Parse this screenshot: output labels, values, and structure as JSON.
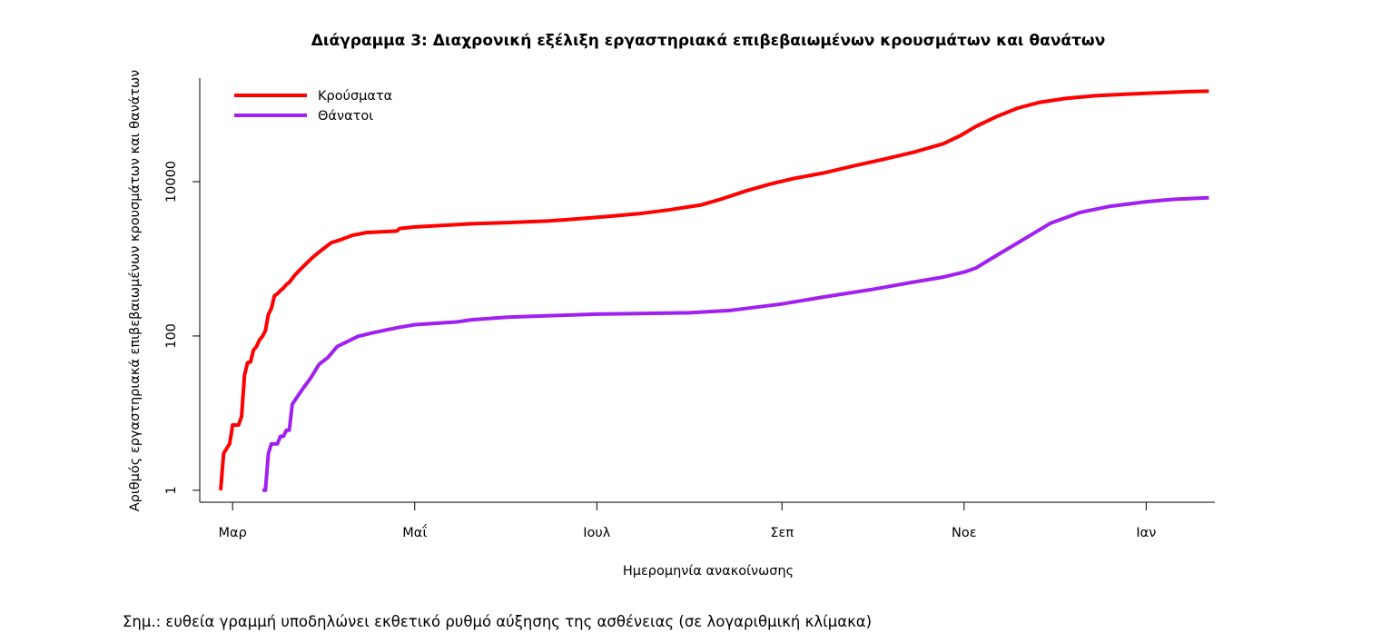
{
  "chart_data": {
    "type": "line",
    "title": "Διάγραμμα 3: Διαχρονική εξέλιξη εργαστηριακά επιβεβαιωμένων κρουσμάτων και θανάτων",
    "xlabel": "Ημερομηνία ανακοίνωσης",
    "ylabel": "Αριθμός εργαστηριακά επιβεβαιωμένων κρουσμάτων και θανάτων",
    "y_scale": "log",
    "ylim": [
      0.7,
      220000
    ],
    "xlim": [
      "2020-02-19",
      "2021-01-24"
    ],
    "y_ticks": [
      {
        "value": 1,
        "label": "1"
      },
      {
        "value": 100,
        "label": "100"
      },
      {
        "value": 10000,
        "label": "10000"
      }
    ],
    "x_ticks": [
      {
        "date": "2020-03-01",
        "label": "Μαρ"
      },
      {
        "date": "2020-05-01",
        "label": "Μαΐ"
      },
      {
        "date": "2020-07-01",
        "label": "Ιουλ"
      },
      {
        "date": "2020-09-01",
        "label": "Σεπ"
      },
      {
        "date": "2020-11-01",
        "label": "Νοε"
      },
      {
        "date": "2021-01-01",
        "label": "Ιαν"
      }
    ],
    "legend_position": "top-left",
    "grid": false,
    "series": [
      {
        "name": "Κρούσματα",
        "color": "#ff0000",
        "points": [
          [
            "2020-02-26",
            1
          ],
          [
            "2020-02-27",
            3
          ],
          [
            "2020-02-29",
            4
          ],
          [
            "2020-03-01",
            7
          ],
          [
            "2020-03-03",
            7
          ],
          [
            "2020-03-04",
            9
          ],
          [
            "2020-03-05",
            31
          ],
          [
            "2020-03-06",
            45
          ],
          [
            "2020-03-07",
            46
          ],
          [
            "2020-03-08",
            66
          ],
          [
            "2020-03-09",
            73
          ],
          [
            "2020-03-10",
            89
          ],
          [
            "2020-03-11",
            99
          ],
          [
            "2020-03-12",
            117
          ],
          [
            "2020-03-13",
            190
          ],
          [
            "2020-03-14",
            228
          ],
          [
            "2020-03-15",
            331
          ],
          [
            "2020-03-16",
            352
          ],
          [
            "2020-03-17",
            387
          ],
          [
            "2020-03-18",
            418
          ],
          [
            "2020-03-19",
            464
          ],
          [
            "2020-03-20",
            495
          ],
          [
            "2020-03-22",
            624
          ],
          [
            "2020-03-25",
            821
          ],
          [
            "2020-03-28",
            1061
          ],
          [
            "2020-03-31",
            1314
          ],
          [
            "2020-04-03",
            1613
          ],
          [
            "2020-04-06",
            1755
          ],
          [
            "2020-04-10",
            2011
          ],
          [
            "2020-04-15",
            2192
          ],
          [
            "2020-04-20",
            2245
          ],
          [
            "2020-04-25",
            2290
          ],
          [
            "2020-04-26",
            2470
          ],
          [
            "2020-05-01",
            2591
          ],
          [
            "2020-05-10",
            2710
          ],
          [
            "2020-05-20",
            2850
          ],
          [
            "2020-06-01",
            2950
          ],
          [
            "2020-06-15",
            3100
          ],
          [
            "2020-06-25",
            3300
          ],
          [
            "2020-07-05",
            3550
          ],
          [
            "2020-07-15",
            3850
          ],
          [
            "2020-07-25",
            4300
          ],
          [
            "2020-08-05",
            5000
          ],
          [
            "2020-08-12",
            6000
          ],
          [
            "2020-08-20",
            7600
          ],
          [
            "2020-08-28",
            9300
          ],
          [
            "2020-09-05",
            11000
          ],
          [
            "2020-09-15",
            13000
          ],
          [
            "2020-09-25",
            16000
          ],
          [
            "2020-10-05",
            19500
          ],
          [
            "2020-10-15",
            24000
          ],
          [
            "2020-10-25",
            31000
          ],
          [
            "2020-10-31",
            40000
          ],
          [
            "2020-11-05",
            52000
          ],
          [
            "2020-11-12",
            70000
          ],
          [
            "2020-11-19",
            90000
          ],
          [
            "2020-11-26",
            106000
          ],
          [
            "2020-12-05",
            120000
          ],
          [
            "2020-12-15",
            130000
          ],
          [
            "2020-12-25",
            136000
          ],
          [
            "2021-01-05",
            142000
          ],
          [
            "2021-01-15",
            147000
          ],
          [
            "2021-01-22",
            149000
          ]
        ]
      },
      {
        "name": "Θάνατοι",
        "color": "#a020f0",
        "points": [
          [
            "2020-03-11",
            1
          ],
          [
            "2020-03-12",
            1
          ],
          [
            "2020-03-13",
            3
          ],
          [
            "2020-03-14",
            4
          ],
          [
            "2020-03-16",
            4
          ],
          [
            "2020-03-17",
            5
          ],
          [
            "2020-03-18",
            5
          ],
          [
            "2020-03-19",
            6
          ],
          [
            "2020-03-20",
            6
          ],
          [
            "2020-03-21",
            13
          ],
          [
            "2020-03-23",
            17
          ],
          [
            "2020-03-25",
            22
          ],
          [
            "2020-03-27",
            28
          ],
          [
            "2020-03-30",
            43
          ],
          [
            "2020-04-02",
            53
          ],
          [
            "2020-04-05",
            73
          ],
          [
            "2020-04-08",
            83
          ],
          [
            "2020-04-12",
            99
          ],
          [
            "2020-04-17",
            110
          ],
          [
            "2020-04-22",
            121
          ],
          [
            "2020-04-26",
            130
          ],
          [
            "2020-05-01",
            140
          ],
          [
            "2020-05-08",
            146
          ],
          [
            "2020-05-15",
            152
          ],
          [
            "2020-05-20",
            162
          ],
          [
            "2020-06-01",
            175
          ],
          [
            "2020-06-15",
            183
          ],
          [
            "2020-07-01",
            192
          ],
          [
            "2020-07-15",
            195
          ],
          [
            "2020-08-01",
            200
          ],
          [
            "2020-08-15",
            215
          ],
          [
            "2020-09-01",
            260
          ],
          [
            "2020-09-15",
            320
          ],
          [
            "2020-10-01",
            400
          ],
          [
            "2020-10-15",
            500
          ],
          [
            "2020-10-25",
            580
          ],
          [
            "2020-11-01",
            673
          ],
          [
            "2020-11-05",
            760
          ],
          [
            "2020-11-10",
            1000
          ],
          [
            "2020-11-20",
            1700
          ],
          [
            "2020-11-30",
            2900
          ],
          [
            "2020-12-10",
            4000
          ],
          [
            "2020-12-20",
            4800
          ],
          [
            "2021-01-01",
            5500
          ],
          [
            "2021-01-10",
            5900
          ],
          [
            "2021-01-22",
            6200
          ]
        ]
      }
    ]
  },
  "note": "Σημ.: ευθεία γραμμή υποδηλώνει εκθετικό ρυθμό αύξησης της ασθένειας (σε λογαριθμική κλίμακα)"
}
